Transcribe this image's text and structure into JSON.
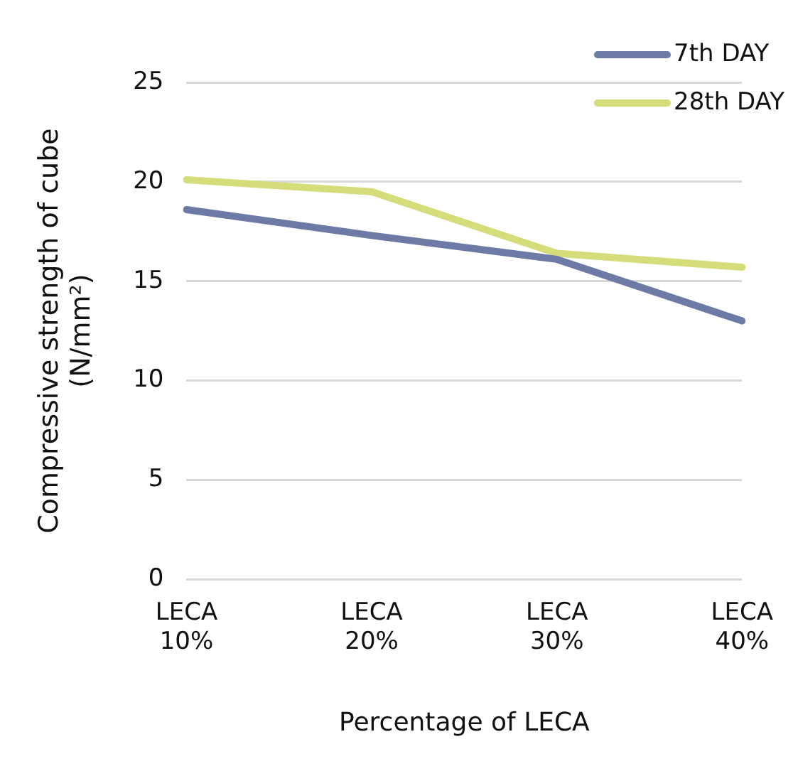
{
  "chart_data": {
    "type": "line",
    "categories": [
      "LECA 10%",
      "LECA 20%",
      "LECA 30%",
      "LECA 40%"
    ],
    "series": [
      {
        "name": "7th DAY",
        "color": "#6e7aa6",
        "values": [
          18.6,
          17.3,
          16.1,
          13.0
        ]
      },
      {
        "name": "28th DAY",
        "color": "#d5dc7a",
        "values": [
          20.1,
          19.5,
          16.4,
          15.7
        ]
      }
    ],
    "xlabel": "Percentage of LECA",
    "ylabel": "Compressive strength of cube (N/mm²)",
    "ylim": [
      0,
      25
    ],
    "yticks": [
      0,
      5,
      10,
      15,
      20,
      25
    ],
    "grid": "y",
    "legend": "top right",
    "marker": "none",
    "line_style": "solid"
  }
}
